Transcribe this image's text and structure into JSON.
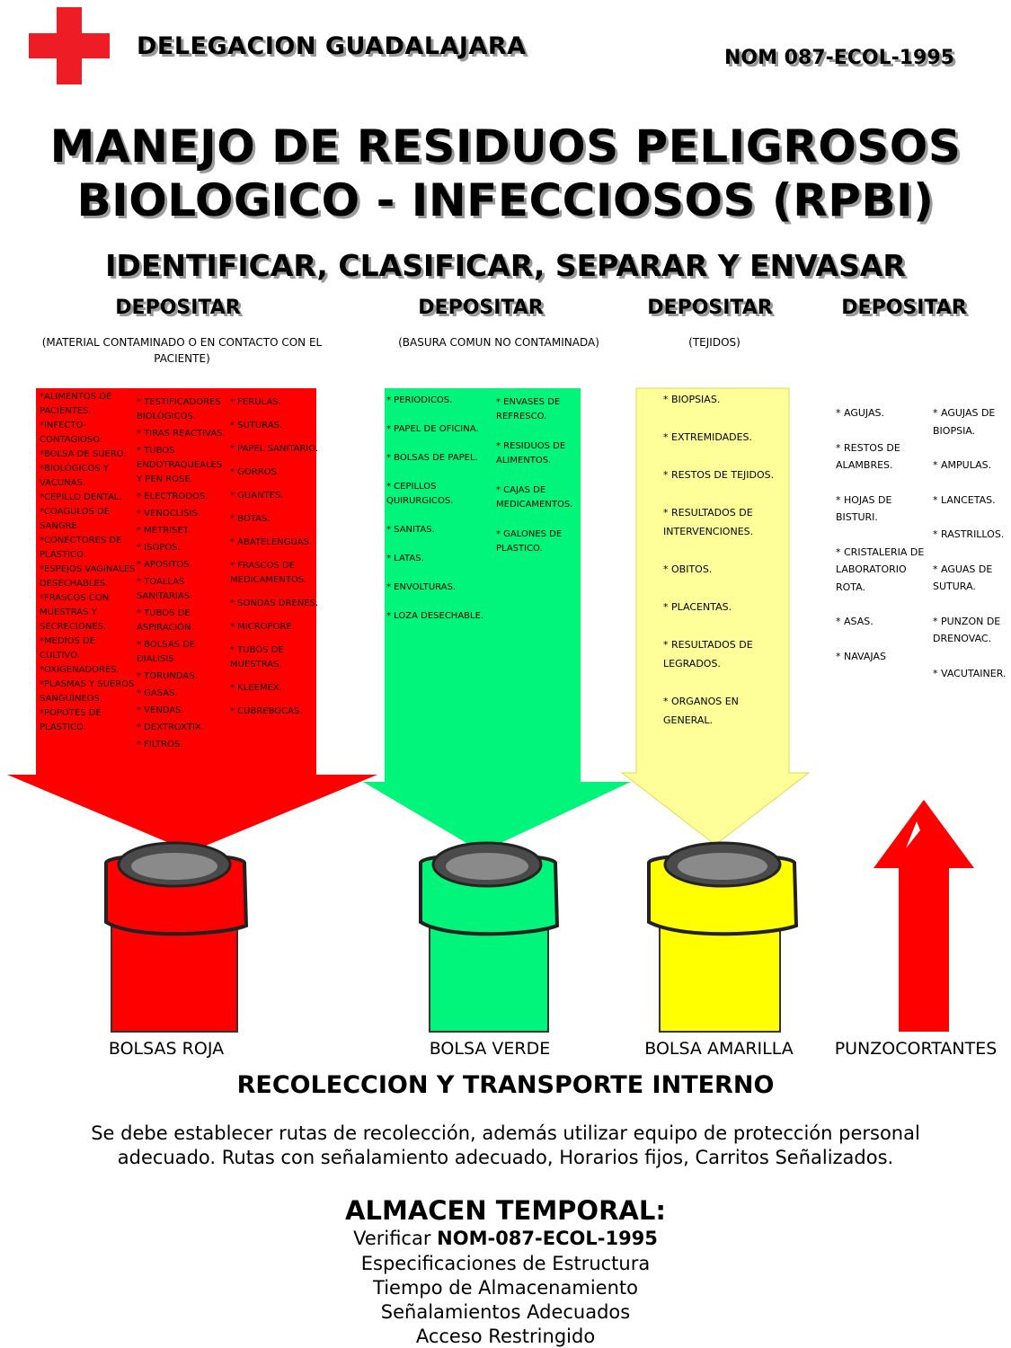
{
  "header": {
    "organization": "DELEGACION GUADALAJARA",
    "norm": "NOM 087-ECOL-1995"
  },
  "title": {
    "line1": "MANEJO DE RESIDUOS PELIGROSOS",
    "line2": "BIOLOGICO - INFECCIOSOS (RPBI)"
  },
  "subtitle": "IDENTIFICAR, CLASIFICAR, SEPARAR Y ENVASAR",
  "colors": {
    "red": "#ff0000",
    "green": "#00f57a",
    "yellow": "#ffff00",
    "pale_yellow": "#ffff99",
    "cross_red": "#ee1c24"
  },
  "columns": [
    {
      "heading": "DEPOSITAR",
      "note": "(MATERIAL CONTAMINADO O EN CONTACTO CON EL PACIENTE)",
      "bin_label": "BOLSAS ROJA",
      "items_col1": [
        "*ALIMENTOS DE PACIENTES.",
        "*INFECTO-CONTAGIOSO.",
        "*BOLSA DE SUERO.",
        "*BIOLÓGICOS Y VACUNAS.",
        "*CEPILLO DENTAL.",
        "*COAGULOS DE SANGRE.",
        "*CONECTORES DE PLÁSTICO.",
        "*ESPEJOS VAGINALES DESECHABLES.",
        "*FRASCOS CON MUESTRAS Y SECRECIONES.",
        "*MEDIOS DE CULTIVO.",
        "*OXIGENADORES.",
        "*PLASMAS Y SUEROS SANGUÍNEOS.",
        "*POPOTES DE PLÁSTICO."
      ],
      "items_col2": [
        "* TESTIFICADORES BIOLÓGICOS.",
        "* TIRAS REACTIVAS.",
        "* TUBOS ENDOTRAQUEALES Y PEN ROSE.",
        "* ELECTRODOS.",
        "* VENOCLISIS.",
        "* METRISET.",
        "* ISOPOS.",
        "* APOSITOS.",
        "* TOALLAS SANITARIAS.",
        "* TUBOS DE ASPIRACIÓN.",
        "* BOLSAS DE DIALISIS.",
        "* TORUNDAS.",
        "* GASAS.",
        "* VENDAS.",
        "* DEXTROXTIX.",
        "* FILTROS."
      ],
      "items_col3": [
        "* FERULAS.",
        "* SUTURAS.",
        "* PAPEL SANITARIO.",
        "* GORROS.",
        "* GUANTES.",
        "* BOTAS.",
        "* ABATELENGUAS.",
        "* FRASCOS DE MEDICAMENTOS.",
        "* SONDAS DRENES.",
        "* MICROPORE.",
        "* TUBOS DE MUESTRAS.",
        "* KLEEMEX.",
        "* CUBREBOCAS."
      ]
    },
    {
      "heading": "DEPOSITAR",
      "note": "(BASURA COMUN NO CONTAMINADA)",
      "bin_label": "BOLSA VERDE",
      "items_col1": [
        "* PERIODICOS.",
        "* PAPEL DE OFICINA.",
        "* BOLSAS DE PAPEL.",
        "* CEPILLOS QUIRURGICOS.",
        "* SANITAS.",
        "* LATAS.",
        "* ENVOLTURAS.",
        "* LOZA DESECHABLE."
      ],
      "items_col2": [
        "* ENVASES DE REFRESCO.",
        "* RESIDUOS DE ALIMENTOS.",
        "* CAJAS DE MEDICAMENTOS.",
        "* GALONES DE PLASTICO."
      ]
    },
    {
      "heading": "DEPOSITAR",
      "note": "(TEJIDOS)",
      "bin_label": "BOLSA AMARILLA",
      "items_col1": [
        "* BIOPSIAS.",
        "* EXTREMIDADES.",
        "* RESTOS DE TEJIDOS.",
        "* RESULTADOS DE INTERVENCIONES.",
        "* OBITOS.",
        "* PLACENTAS.",
        "* RESULTADOS DE LEGRADOS.",
        "* ORGANOS EN GENERAL."
      ]
    },
    {
      "heading": "DEPOSITAR",
      "note": "",
      "bin_label": "PUNZOCORTANTES",
      "items_col1": [
        "* AGUJAS.",
        "* RESTOS DE ALAMBRES.",
        "* HOJAS DE BISTURI.",
        "* CRISTALERIA DE LABORATORIO ROTA.",
        "* ASAS.",
        "* NAVAJAS"
      ],
      "items_col2": [
        "* AGUJAS DE BIOPSIA.",
        "* AMPULAS.",
        "* LANCETAS.",
        "* RASTRILLOS.",
        "* AGUAS DE SUTURA.",
        "* PUNZON DE DRENOVAC.",
        "* VACUTAINER."
      ]
    }
  ],
  "recoleccion": {
    "heading": "RECOLECCION Y TRANSPORTE INTERNO",
    "line1": "Se debe establecer rutas de recolección, además utilizar equipo de protección personal",
    "line2": "adecuado.  Rutas con señalamiento adecuado, Horarios fijos, Carritos Señalizados."
  },
  "almacen": {
    "heading": "ALMACEN TEMPORAL:",
    "verify_prefix": "Verificar ",
    "verify_norm": "NOM-087-ECOL-1995",
    "lines": [
      "Especificaciones de Estructura",
      "Tiempo de Almacenamiento",
      "Señalamientos Adecuados",
      "Acceso Restringido"
    ]
  }
}
